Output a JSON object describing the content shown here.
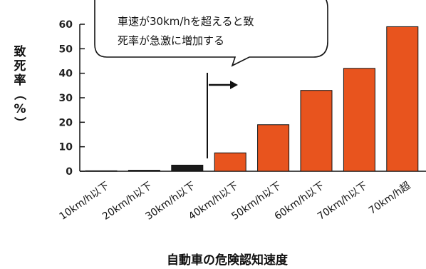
{
  "chart_data": {
    "type": "bar",
    "title": "",
    "xlabel": "自動車の危険認知速度",
    "ylabel_chars": [
      "致",
      "死",
      "率",
      "（",
      "%",
      "）"
    ],
    "ylim": [
      0,
      60
    ],
    "yticks": [
      0,
      10,
      20,
      30,
      40,
      50,
      60
    ],
    "categories": [
      "10km/h以下",
      "20km/h以下",
      "30km/h以下",
      "40km/h以下",
      "50km/h以下",
      "60km/h以下",
      "70km/h以下",
      "70km/h超"
    ],
    "values": [
      0.2,
      0.4,
      2.5,
      7.5,
      19,
      33,
      42,
      59
    ],
    "bar_colors": [
      "#1a1a1a",
      "#1a1a1a",
      "#1a1a1a",
      "#e8541e",
      "#e8541e",
      "#e8541e",
      "#e8541e",
      "#e8541e"
    ],
    "grid": false,
    "annotation": {
      "lines": [
        "車速が30km/hを超えると致",
        "死率が急激に増加する"
      ],
      "arrow_direction": "right"
    }
  }
}
